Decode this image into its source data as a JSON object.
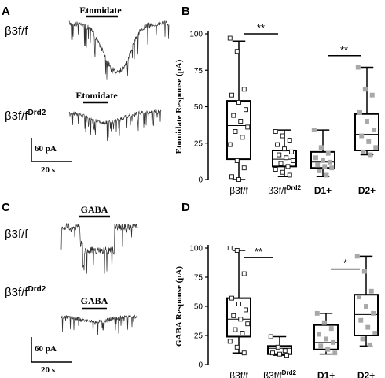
{
  "panels": {
    "A": {
      "letter": "A",
      "trace_top": {
        "genotype": "β3f/f",
        "drug": "Etomidate"
      },
      "trace_bottom": {
        "genotype_base": "β3f/f",
        "genotype_sup": "Drd2",
        "drug": "Etomidate"
      },
      "scale": {
        "current": "60 pA",
        "time": "20 s"
      }
    },
    "C": {
      "letter": "C",
      "trace_top": {
        "genotype": "β3f/f",
        "drug": "GABA"
      },
      "trace_bottom": {
        "genotype_base": "β3f/f",
        "genotype_sup": "Drd2",
        "drug": "GABA"
      },
      "scale": {
        "current": "60 pA",
        "time": "20 s"
      }
    }
  },
  "chart_data": [
    {
      "panel": "B",
      "type": "box",
      "ylabel": "Etomidate Response (pA)",
      "ylim": [
        0,
        100
      ],
      "yticks": [
        0,
        25,
        50,
        75,
        100
      ],
      "groups": [
        {
          "label": "β3f/f",
          "label_sup": "",
          "stats": {
            "min": 0,
            "q1": 14,
            "median": 37,
            "q3": 54,
            "max": 95
          },
          "points": [
            97,
            88,
            62,
            58,
            53,
            48,
            44,
            40,
            36,
            33,
            29,
            24,
            13,
            8,
            2,
            0
          ],
          "marker": "open"
        },
        {
          "label": "β3f/f",
          "label_sup": "Drd2",
          "stats": {
            "min": 2,
            "q1": 9,
            "median": 14,
            "q3": 20,
            "max": 34
          },
          "points": [
            33,
            30,
            27,
            24,
            21,
            19,
            17,
            15,
            13,
            11,
            9,
            7,
            5,
            3
          ],
          "marker": "open"
        },
        {
          "label": "D1+",
          "label_sup": "",
          "stats": {
            "min": 2,
            "q1": 8,
            "median": 12,
            "q3": 19,
            "max": 34
          },
          "points": [
            34,
            22,
            18,
            15,
            13,
            12,
            10,
            9,
            8,
            6,
            3
          ],
          "marker": "filled"
        },
        {
          "label": "D2+",
          "label_sup": "",
          "stats": {
            "min": 17,
            "q1": 20,
            "median": 31,
            "q3": 45,
            "max": 77
          },
          "points": [
            77,
            62,
            58,
            46,
            40,
            34,
            30,
            26,
            22,
            19,
            17
          ],
          "marker": "filled"
        }
      ],
      "significance": [
        {
          "groups": [
            0,
            1
          ],
          "label": "**",
          "y": 100
        },
        {
          "groups": [
            2,
            3
          ],
          "label": "**",
          "y": 85
        }
      ]
    },
    {
      "panel": "D",
      "type": "box",
      "ylabel": "GABA Response (pA)",
      "ylim": [
        0,
        100
      ],
      "yticks": [
        0,
        25,
        50,
        75,
        100
      ],
      "groups": [
        {
          "label": "β3f/f",
          "label_sup": "",
          "stats": {
            "min": 10,
            "q1": 24,
            "median": 39,
            "q3": 57,
            "max": 98
          },
          "points": [
            100,
            98,
            78,
            57,
            52,
            47,
            42,
            39,
            35,
            30,
            27,
            20,
            15,
            10
          ],
          "marker": "open"
        },
        {
          "label": "β3f/f",
          "label_sup": "Drd2",
          "stats": {
            "min": 8,
            "q1": 9,
            "median": 14,
            "q3": 16,
            "max": 24
          },
          "points": [
            24,
            15,
            12,
            10,
            9,
            8
          ],
          "marker": "open"
        },
        {
          "label": "D1+",
          "label_sup": "",
          "stats": {
            "min": 9,
            "q1": 13,
            "median": 19,
            "q3": 34,
            "max": 44
          },
          "points": [
            44,
            36,
            31,
            26,
            22,
            19,
            16,
            13,
            10
          ],
          "marker": "filled"
        },
        {
          "label": "D2+",
          "label_sup": "",
          "stats": {
            "min": 16,
            "q1": 25,
            "median": 43,
            "q3": 60,
            "max": 93
          },
          "points": [
            93,
            80,
            63,
            58,
            50,
            44,
            38,
            32,
            27,
            22,
            17
          ],
          "marker": "filled"
        }
      ],
      "significance": [
        {
          "groups": [
            0,
            1
          ],
          "label": "**",
          "y": 92
        },
        {
          "groups": [
            2,
            3
          ],
          "label": "*",
          "y": 82
        }
      ]
    }
  ]
}
